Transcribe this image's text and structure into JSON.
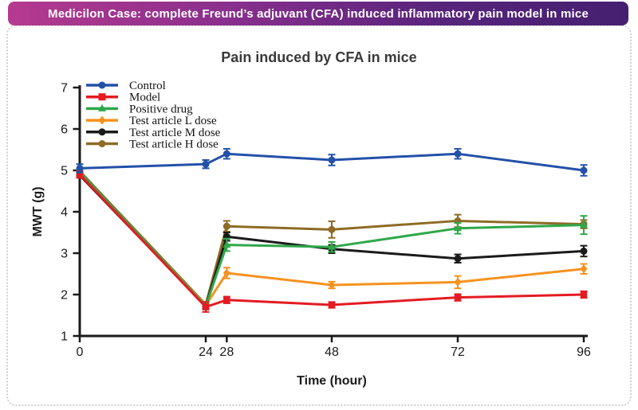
{
  "banner": {
    "title": "Medicilon Case: complete Freund’s adjuvant (CFA) induced inflammatory pain model in mice",
    "gradient": [
      "#b53a8f",
      "#8a2f8d",
      "#57247c",
      "#452070"
    ]
  },
  "chart_data": {
    "type": "line",
    "title": "Pain induced by CFA in mice",
    "xlabel": "Time (hour)",
    "ylabel": "MWT (g)",
    "xlim": [
      0,
      96
    ],
    "ylim": [
      1,
      7
    ],
    "x_ticks": [
      0,
      24,
      28,
      48,
      72,
      96
    ],
    "y_ticks": [
      1,
      2,
      3,
      4,
      5,
      6,
      7
    ],
    "grid": false,
    "legend_position": "top-left",
    "x": [
      0,
      24,
      28,
      48,
      72,
      96
    ],
    "series": [
      {
        "name": "Control",
        "color": "#2351a8",
        "marker": "circle",
        "values": [
          5.05,
          5.15,
          5.4,
          5.25,
          5.4,
          5.0
        ],
        "errors": [
          0.1,
          0.1,
          0.12,
          0.13,
          0.12,
          0.13
        ]
      },
      {
        "name": "Model",
        "color": "#e41b22",
        "marker": "square",
        "values": [
          4.9,
          1.7,
          1.87,
          1.75,
          1.93,
          2.0
        ],
        "errors": [
          0.08,
          0.12,
          0.08,
          0.07,
          0.08,
          0.08
        ]
      },
      {
        "name": "Positive drug",
        "color": "#2fa84b",
        "marker": "triangle",
        "values": [
          4.95,
          1.72,
          3.2,
          3.15,
          3.6,
          3.68
        ],
        "errors": [
          0.08,
          0.08,
          0.15,
          0.12,
          0.13,
          0.22
        ]
      },
      {
        "name": "Test article L dose",
        "color": "#f6921e",
        "marker": "diamond",
        "values": [
          4.92,
          1.74,
          2.52,
          2.23,
          2.3,
          2.62
        ],
        "errors": [
          0.08,
          0.08,
          0.13,
          0.08,
          0.15,
          0.12
        ]
      },
      {
        "name": "Test article M dose",
        "color": "#1a1a1a",
        "marker": "circle",
        "values": [
          4.88,
          1.72,
          3.4,
          3.1,
          2.87,
          3.05
        ],
        "errors": [
          0,
          0,
          0.1,
          0.1,
          0.1,
          0.13
        ]
      },
      {
        "name": "Test article H dose",
        "color": "#8e6b26",
        "marker": "circle",
        "values": [
          4.98,
          1.76,
          3.65,
          3.57,
          3.78,
          3.7
        ],
        "errors": [
          0,
          0,
          0.13,
          0.2,
          0.15,
          0.1
        ]
      }
    ]
  }
}
